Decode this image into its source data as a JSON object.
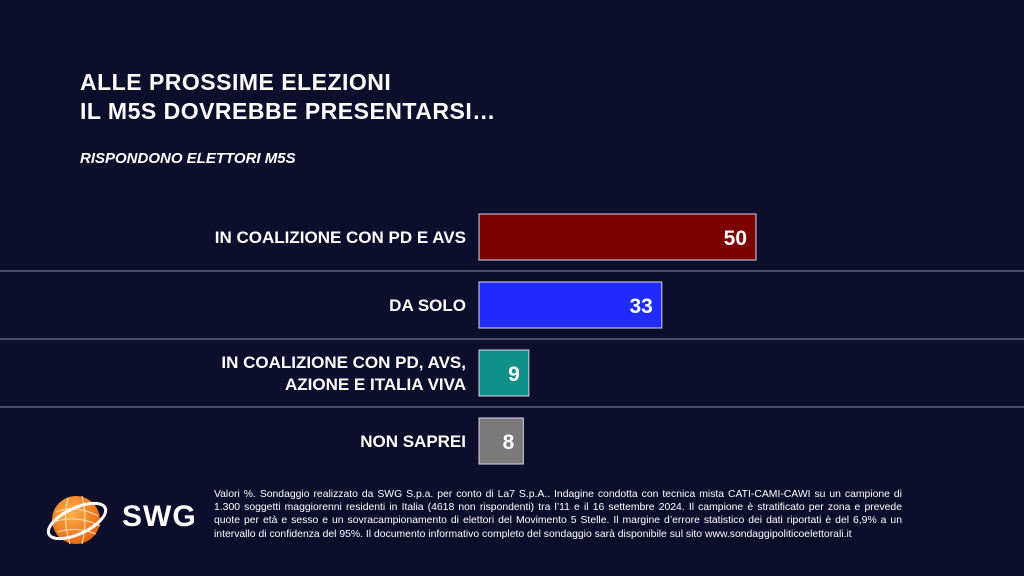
{
  "title_line1": "ALLE PROSSIME ELEZIONI",
  "title_line2": "IL M5S DOVREBBE PRESENTARSI…",
  "subtitle": "RISPONDONO ELETTORI M5S",
  "chart_data": {
    "type": "bar",
    "orientation": "horizontal",
    "categories": [
      [
        "IN COALIZIONE CON PD E AVS"
      ],
      [
        "DA SOLO"
      ],
      [
        "IN COALIZIONE CON PD, AVS,",
        "AZIONE E ITALIA VIVA"
      ],
      [
        "NON SAPREI"
      ]
    ],
    "values": [
      50,
      33,
      9,
      8
    ],
    "colors": [
      "#7d0000",
      "#1f2bff",
      "#12918a",
      "#7a7a7a"
    ],
    "unit": "%"
  },
  "note": "Valori %. Sondaggio realizzato da SWG S.p.a. per conto di La7 S.p.A.. Indagine condotta con tecnica mista CATI-CAMI-CAWI su un campione di 1.300 soggetti maggiorenni residenti in Italia (4618 non rispondenti) tra l’11 e il 16 settembre 2024. Il campione è stratificato per zona e prevede quote per età e sesso e un sovracampionamento di elettori del Movimento 5 Stelle. Il margine d’errore statistico dei dati riportati è del 6,9% a un intervallo di confidenza del 95%. Il documento informativo completo del sondaggio sarà disponibile sul sito www.sondaggipoliticoelettorali.it",
  "logo": {
    "text": "SWG",
    "icon": "globe-icon",
    "colors": {
      "globe": "#f07a1a",
      "ring": "#ffffff"
    }
  }
}
